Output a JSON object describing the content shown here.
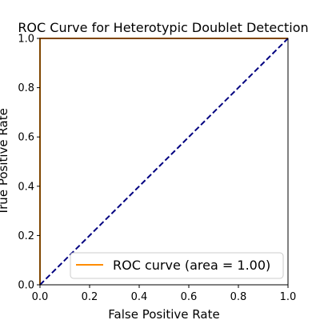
{
  "chart_data": {
    "type": "line",
    "title": "ROC Curve for Heterotypic Doublet Detection",
    "xlabel": "False Positive Rate",
    "ylabel": "True Positive Rate",
    "xlim": [
      0.0,
      1.0
    ],
    "ylim": [
      0.0,
      1.0
    ],
    "x_ticks": [
      "0.0",
      "0.2",
      "0.4",
      "0.6",
      "0.8",
      "1.0"
    ],
    "y_ticks": [
      "0.0",
      "0.2",
      "0.4",
      "0.6",
      "0.8",
      "1.0"
    ],
    "grid": false,
    "legend_position": "lower-right",
    "series": [
      {
        "name": "ROC curve (area = 1.00)",
        "color": "#ff8c00",
        "style": "solid",
        "x": [
          0.0,
          0.0,
          1.0
        ],
        "y": [
          0.0,
          1.0,
          1.0
        ]
      },
      {
        "color": "#000080",
        "style": "dashed",
        "x": [
          0.0,
          1.0
        ],
        "y": [
          0.0,
          1.0
        ]
      }
    ]
  }
}
